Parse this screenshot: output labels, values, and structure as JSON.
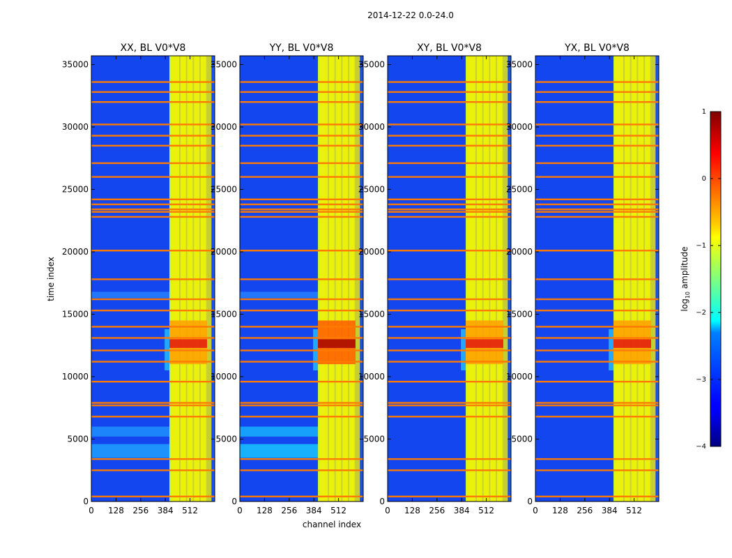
{
  "chart_data": {
    "type": "heatmap",
    "suptitle": "2014-12-22 0.0-24.0",
    "xlabel": "channel index",
    "ylabel": "time index",
    "xlim": [
      0,
      640
    ],
    "ylim": [
      0,
      35700
    ],
    "xticks": [
      0,
      128,
      256,
      384,
      512
    ],
    "yticks": [
      0,
      5000,
      10000,
      15000,
      20000,
      25000,
      30000,
      35000
    ],
    "panels": [
      {
        "title": "XX, BL V0*V8"
      },
      {
        "title": "YY, BL V0*V8"
      },
      {
        "title": "XY, BL V0*V8"
      },
      {
        "title": "YX, BL V0*V8"
      }
    ],
    "colorbar": {
      "label": "log10 amplitude",
      "range": [
        -4,
        1
      ],
      "ticks": [
        1,
        0,
        -1,
        -2,
        -3,
        -4
      ],
      "colormap": "jet"
    },
    "band": {
      "channel_range": [
        405,
        600
      ],
      "stripe_channels": [
        405,
        440,
        475,
        510,
        545,
        580
      ],
      "hot_time_range": [
        11000,
        14500
      ]
    },
    "flagged_time_rows": [
      400,
      2500,
      3400,
      6800,
      7700,
      7900,
      9600,
      11200,
      12100,
      13100,
      14000,
      15300,
      16200,
      17800,
      20100,
      22800,
      23200,
      23400,
      23800,
      24200,
      26000,
      27100,
      28500,
      29300,
      30200,
      32000,
      32800,
      33600
    ]
  }
}
